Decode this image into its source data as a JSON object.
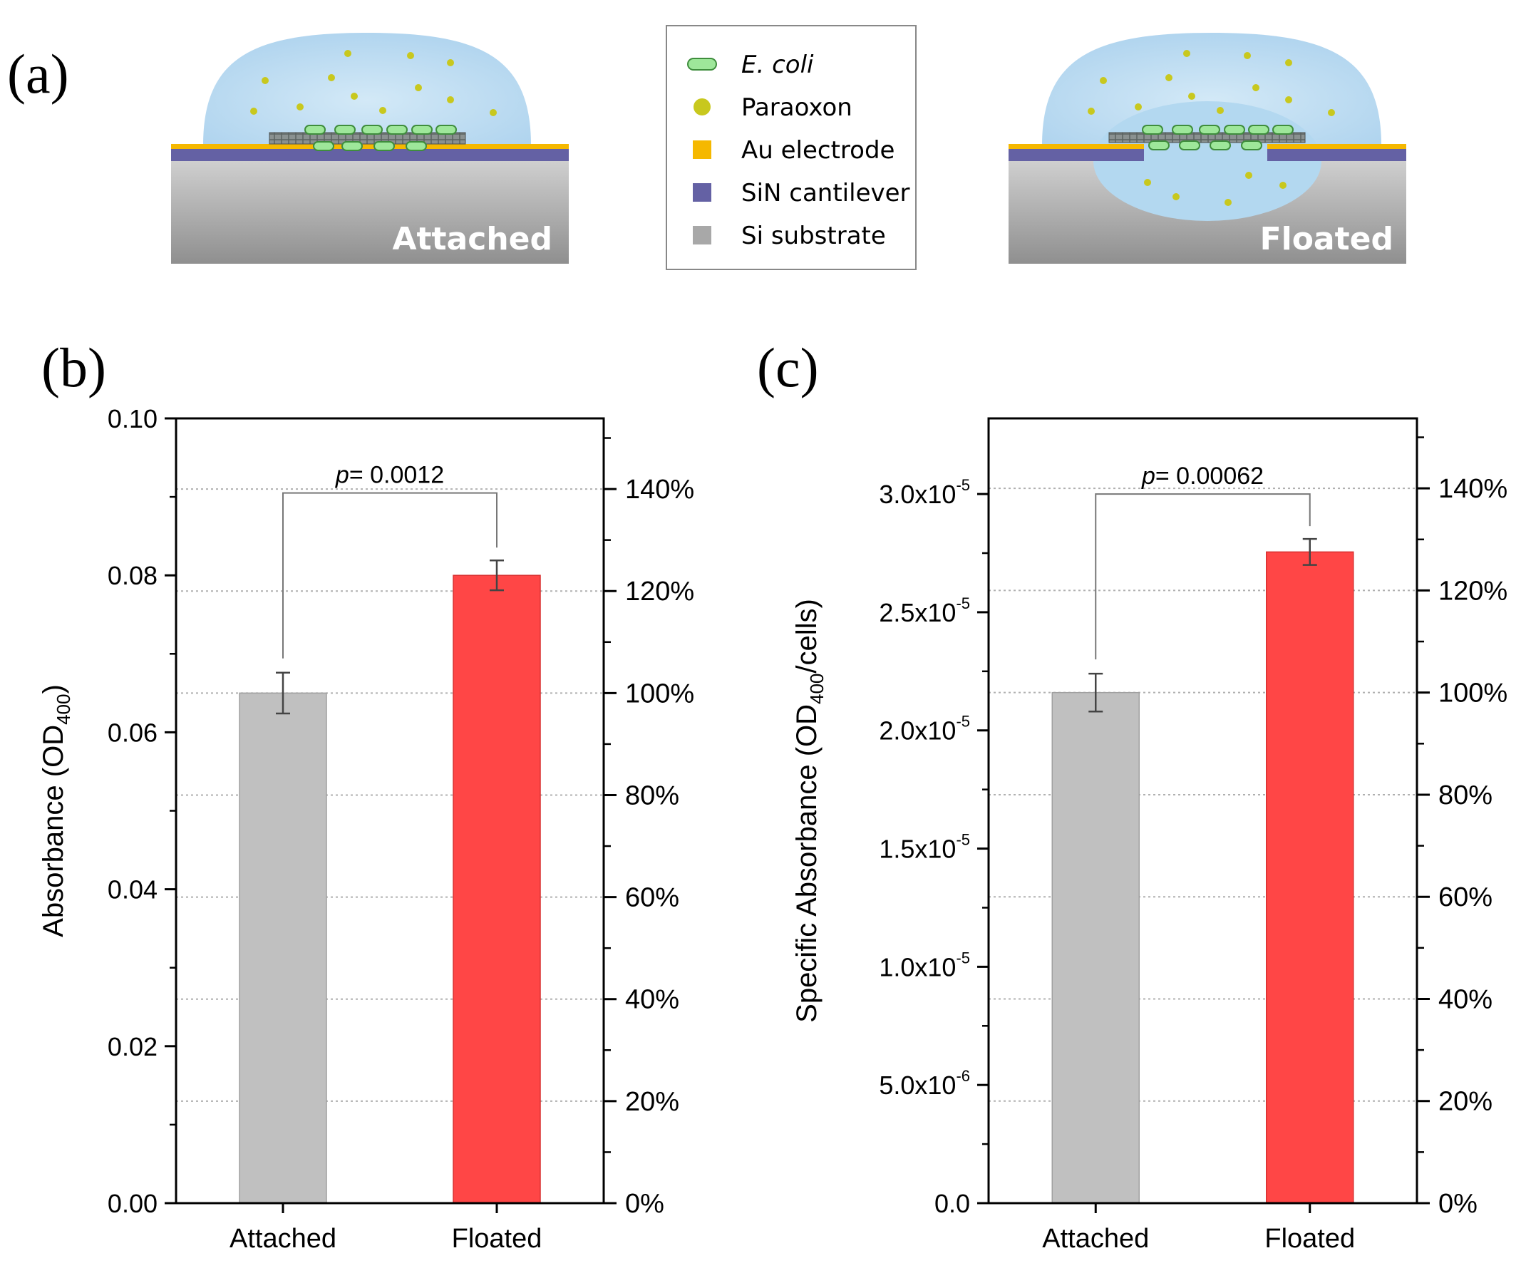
{
  "panel_a": {
    "label": "(a)",
    "left_caption": "Attached",
    "right_caption": "Floated",
    "legend": [
      {
        "icon": "ecoli-icon",
        "label": "E. coli",
        "italic": true,
        "color": "#9ee79a"
      },
      {
        "icon": "paraoxon-icon",
        "label": "Paraoxon",
        "italic": false,
        "color": "#c8c81e"
      },
      {
        "icon": "au-electrode-icon",
        "label": "Au electrode",
        "italic": false,
        "color": "#f5b800"
      },
      {
        "icon": "sin-cantilever-icon",
        "label": "SiN cantilever",
        "italic": false,
        "color": "#6461a4"
      },
      {
        "icon": "si-substrate-icon",
        "label": "Si substrate",
        "italic": false,
        "color": "#a8a8a8"
      }
    ]
  },
  "chart_data": [
    {
      "panel_label": "(b)",
      "type": "bar",
      "categories": [
        "Attached",
        "Floated"
      ],
      "values": [
        0.065,
        0.08
      ],
      "errors": [
        0.0026,
        0.0019
      ],
      "colors": [
        "#c0c0c0",
        "#ff4646"
      ],
      "ylabel_main": "Absorbance (OD",
      "ylabel_sub": "400",
      "ylabel_end": ")",
      "ylim": [
        0,
        0.1
      ],
      "yticks": [
        0.0,
        0.02,
        0.04,
        0.06,
        0.08,
        0.1
      ],
      "ytick_labels": [
        "0.00",
        "0.02",
        "0.04",
        "0.06",
        "0.08",
        "0.10"
      ],
      "right_axis": {
        "ticks": [
          0,
          20,
          40,
          60,
          80,
          100,
          120,
          140
        ],
        "labels": [
          "0%",
          "20%",
          "40%",
          "60%",
          "80%",
          "100%",
          "120%",
          "140%"
        ],
        "ref_value": 0.065
      },
      "significance": {
        "p_symbol": "p",
        "text": "= 0.0012",
        "bracket_y": 0.0905
      },
      "grid": "dotted at right-axis percent ticks"
    },
    {
      "panel_label": "(c)",
      "type": "bar",
      "categories": [
        "Attached",
        "Floated"
      ],
      "values": [
        2.16e-05,
        2.755e-05
      ],
      "errors": [
        8e-07,
        5.5e-07
      ],
      "colors": [
        "#c0c0c0",
        "#ff4646"
      ],
      "ylabel_main": "Specific Absorbance (OD",
      "ylabel_sub": "400",
      "ylabel_end": "/cells)",
      "ylim": [
        0,
        3.32e-05
      ],
      "yticks": [
        0,
        5e-06,
        1e-05,
        1.5e-05,
        2e-05,
        2.5e-05,
        3e-05
      ],
      "ytick_labels": [
        {
          "base": "0.0",
          "exp": ""
        },
        {
          "base": "5.0x10",
          "exp": "-6"
        },
        {
          "base": "1.0x10",
          "exp": "-5"
        },
        {
          "base": "1.5x10",
          "exp": "-5"
        },
        {
          "base": "2.0x10",
          "exp": "-5"
        },
        {
          "base": "2.5x10",
          "exp": "-5"
        },
        {
          "base": "3.0x10",
          "exp": "-5"
        }
      ],
      "right_axis": {
        "ticks": [
          0,
          20,
          40,
          60,
          80,
          100,
          120,
          140
        ],
        "labels": [
          "0%",
          "20%",
          "40%",
          "60%",
          "80%",
          "100%",
          "120%",
          "140%"
        ],
        "ref_value": 2.16e-05
      },
      "significance": {
        "p_symbol": "p",
        "text": "= 0.00062",
        "bracket_y": 3e-05
      },
      "grid": "dotted at right-axis percent ticks"
    }
  ]
}
